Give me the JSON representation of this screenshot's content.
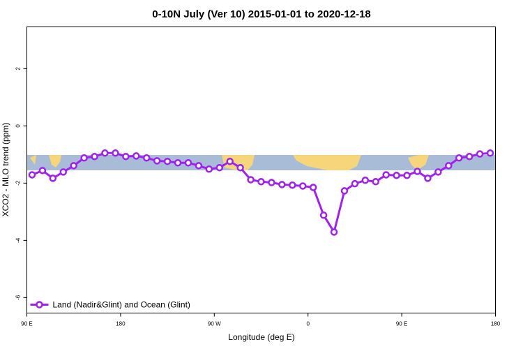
{
  "chart_data": {
    "type": "line",
    "title": "0-10N July (Ver 10)   2015-01-01 to 2020-12-18",
    "x_label": "Longitude (deg E)",
    "y_label": "XCO2 - MLO trend (ppm)",
    "x": [
      95,
      105,
      115,
      125,
      135,
      145,
      155,
      165,
      175,
      185,
      195,
      205,
      215,
      225,
      235,
      245,
      255,
      265,
      275,
      285,
      295,
      305,
      315,
      325,
      335,
      345,
      355,
      365,
      375,
      385,
      395,
      405,
      415,
      425,
      435,
      445,
      455,
      465,
      475,
      485,
      495,
      505,
      515,
      525,
      535
    ],
    "series": [
      {
        "name": "Land (Nadir&Glint) and Ocean (Glint)",
        "color": "#a020f0",
        "values": [
          -1.71,
          -1.56,
          -1.83,
          -1.61,
          -1.39,
          -1.12,
          -1.07,
          -0.95,
          -0.95,
          -1.07,
          -1.05,
          -1.12,
          -1.22,
          -1.24,
          -1.29,
          -1.29,
          -1.39,
          -1.51,
          -1.46,
          -1.24,
          -1.46,
          -1.88,
          -1.95,
          -1.98,
          -2.05,
          -2.07,
          -2.1,
          -2.15,
          -3.12,
          -3.71,
          -2.27,
          -2.02,
          -1.9,
          -1.95,
          -1.71,
          -1.73,
          -1.73,
          -1.59,
          -1.83,
          -1.61,
          -1.39,
          -1.12,
          -1.07,
          -0.98,
          -0.95
        ]
      }
    ],
    "xlim": [
      90,
      540
    ],
    "xticks": [
      {
        "value": 90,
        "label": "90 E"
      },
      {
        "value": 180,
        "label": "180"
      },
      {
        "value": 270,
        "label": "90 W"
      },
      {
        "value": 360,
        "label": "0"
      },
      {
        "value": 450,
        "label": "90 E"
      },
      {
        "value": 540,
        "label": "180"
      }
    ],
    "ylim": [
      -6.54,
      3.46
    ],
    "yticks": [
      -6,
      -4,
      -2,
      0,
      2
    ],
    "legend": "bottom-left"
  }
}
